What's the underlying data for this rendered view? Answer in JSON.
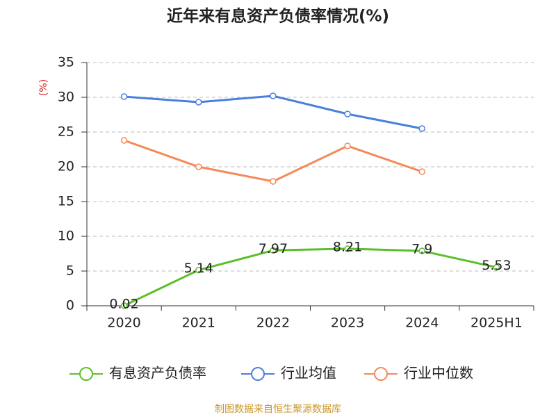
{
  "chart_data": {
    "type": "line",
    "title": "近年来有息资产负债率情况(%)",
    "y_axis_label": "(%)",
    "source": "制图数据来自恒生聚源数据库",
    "categories": [
      "2020",
      "2021",
      "2022",
      "2023",
      "2024",
      "2025H1"
    ],
    "series": [
      {
        "name": "有息资产负债率",
        "color": "#5cbf2a",
        "values": [
          0.02,
          5.14,
          7.97,
          8.21,
          7.9,
          5.53
        ]
      },
      {
        "name": "行业均值",
        "color": "#4a7fdb",
        "values": [
          30.1,
          29.3,
          30.2,
          27.6,
          25.5,
          null
        ]
      },
      {
        "name": "行业中位数",
        "color": "#f5895a",
        "values": [
          23.8,
          20.0,
          17.9,
          23.0,
          19.3,
          null
        ]
      }
    ],
    "ylim": [
      0,
      35
    ],
    "yticks": [
      0,
      5,
      10,
      15,
      20,
      25,
      30,
      35
    ],
    "grid": true
  }
}
